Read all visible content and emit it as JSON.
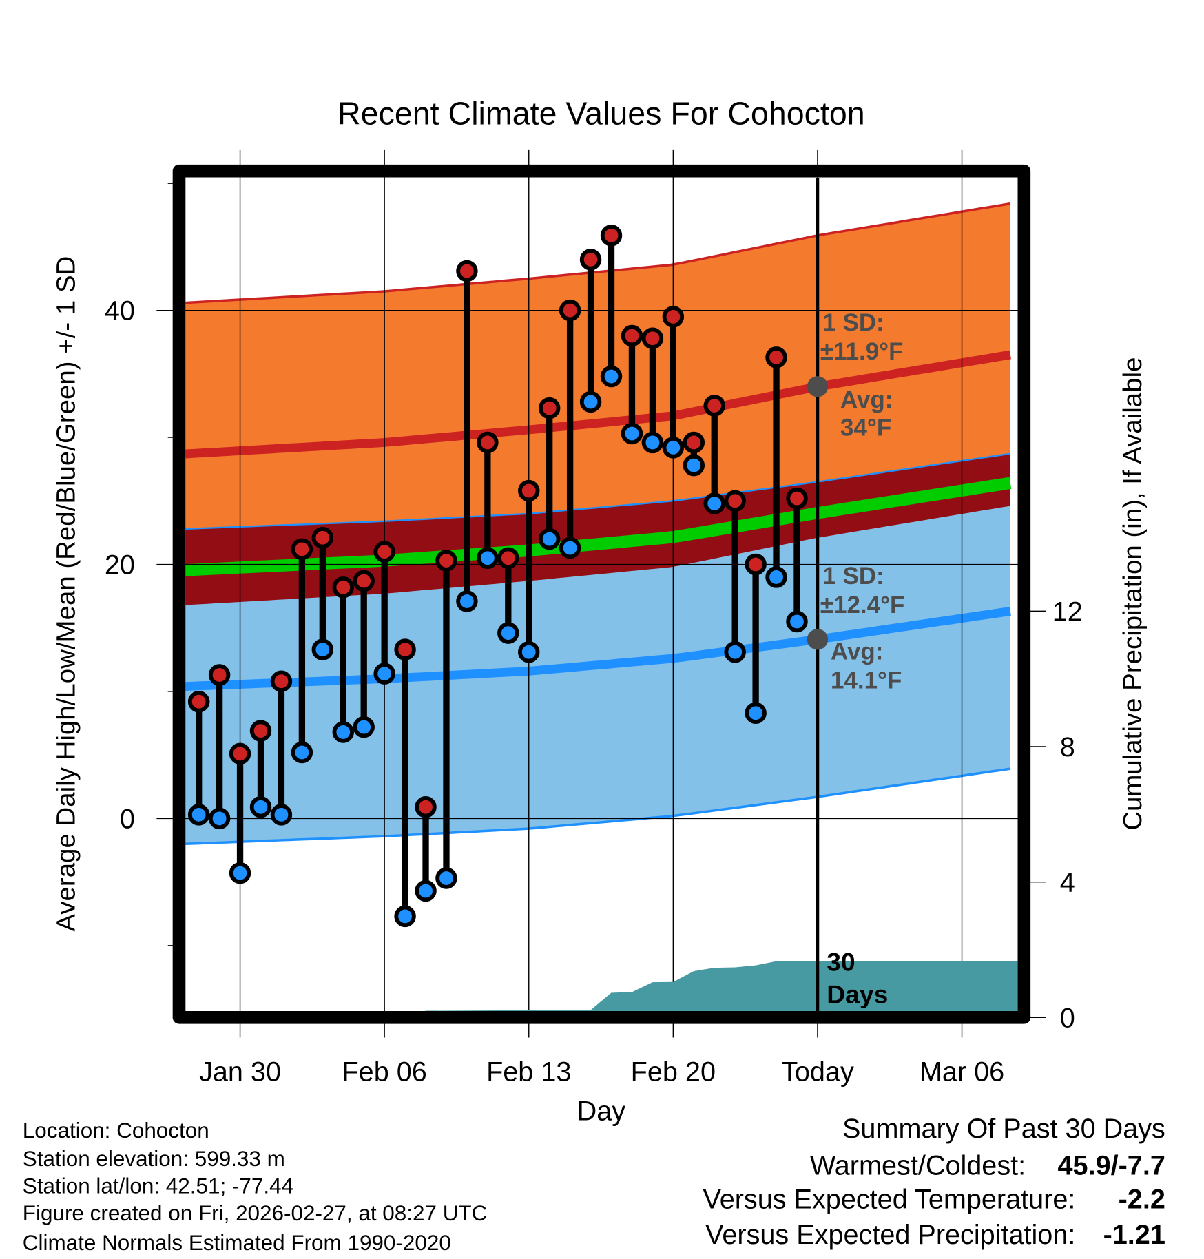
{
  "chart_data": {
    "type": "line",
    "title": "Recent Climate Values For Cohocton",
    "xlabel": "Day",
    "ylabel": "Average Daily High/Low/Mean (Red/Blue/Green) +/- 1 SD",
    "y2label": "Cumulative Precipitation (in), If Available",
    "ylim": [
      -15.2,
      50.4
    ],
    "y2lim": [
      -0.2,
      24.4
    ],
    "xlim_days_from_jan30": [
      -2.65,
      37.7
    ],
    "x_ticks": [
      {
        "day": 0,
        "label": "Jan 30"
      },
      {
        "day": 7,
        "label": "Feb 06"
      },
      {
        "day": 14,
        "label": "Feb 13"
      },
      {
        "day": 21,
        "label": "Feb 20"
      },
      {
        "day": 28,
        "label": "Today"
      },
      {
        "day": 35,
        "label": "Mar 06"
      }
    ],
    "y_ticks": [
      0,
      20,
      40
    ],
    "y_minor_ticks": [
      -10,
      10,
      30,
      50
    ],
    "y2_ticks": [
      0,
      4,
      8,
      12
    ],
    "grid": true,
    "today_day": 28,
    "normals": {
      "days": [
        -2.65,
        7,
        14,
        21,
        28,
        37.7
      ],
      "avg_high": [
        28.7,
        29.6,
        30.6,
        31.7,
        34.0,
        36.6
      ],
      "avg_low": [
        10.4,
        11.0,
        11.6,
        12.6,
        14.1,
        16.4
      ],
      "sd_high": 11.9,
      "sd_low": 12.4
    },
    "observations": {
      "start_day": -2,
      "high": [
        9.2,
        11.3,
        5.1,
        6.9,
        10.8,
        21.2,
        22.1,
        18.2,
        18.7,
        21.0,
        13.3,
        0.9,
        20.3,
        43.1,
        29.6,
        20.5,
        25.8,
        32.3,
        40.0,
        44.0,
        45.9,
        38.0,
        37.8,
        39.5,
        29.6,
        32.5,
        25.0,
        20.0,
        36.3,
        25.2
      ],
      "low": [
        0.3,
        0.0,
        -4.3,
        0.9,
        0.3,
        5.2,
        13.3,
        6.8,
        7.2,
        11.4,
        -7.7,
        -5.7,
        -4.7,
        17.1,
        20.5,
        14.6,
        13.1,
        22.0,
        21.3,
        32.8,
        34.8,
        30.3,
        29.6,
        29.2,
        27.8,
        24.8,
        13.1,
        8.3,
        19.0,
        15.5
      ]
    },
    "precipitation": {
      "days": [
        -2.65,
        8,
        9,
        16,
        17,
        18,
        19,
        20,
        21,
        22,
        23,
        24,
        25,
        26,
        37.7
      ],
      "cumulative": [
        0.0,
        0.0,
        0.2,
        0.22,
        0.22,
        0.73,
        0.75,
        1.04,
        1.05,
        1.37,
        1.47,
        1.48,
        1.54,
        1.66,
        1.66
      ],
      "label_line1": "30",
      "label_line2": "Days"
    },
    "annotations": {
      "high_sd_label": "1 SD:",
      "high_sd_value": "±11.9°F",
      "high_avg_label": "Avg:",
      "high_avg_value": "34°F",
      "low_sd_label": "1 SD:",
      "low_sd_value": "±12.4°F",
      "low_avg_label": "Avg:",
      "low_avg_value": "14.1°F"
    },
    "colors": {
      "high_band": "#f47a2e",
      "low_band": "#83c1e8",
      "overlap": "#930e14",
      "avg_high": "#cc2222",
      "avg_low": "#1e90ff",
      "mean": "#00cc00",
      "precip": "#4799a2",
      "annotation": "#4d4d4d"
    }
  },
  "footer": {
    "location": "Location: Cohocton",
    "elevation": "Station elevation: 599.33 m",
    "latlon": "Station lat/lon: 42.51; -77.44",
    "created": "Figure created on Fri, 2026-02-27, at 08:27 UTC",
    "normals": "Climate Normals Estimated From 1990-2020"
  },
  "summary": {
    "title": "Summary Of Past 30 Days",
    "warmest_coldest_label": "Warmest/Coldest:",
    "warmest_coldest_value": "45.9/-7.7",
    "temp_label": "Versus Expected Temperature:",
    "temp_value": "-2.2",
    "temp_color": "#1e90ff",
    "precip_label": "Versus Expected Precipitation:",
    "precip_value": "-1.21",
    "precip_color": "#a0522d"
  }
}
